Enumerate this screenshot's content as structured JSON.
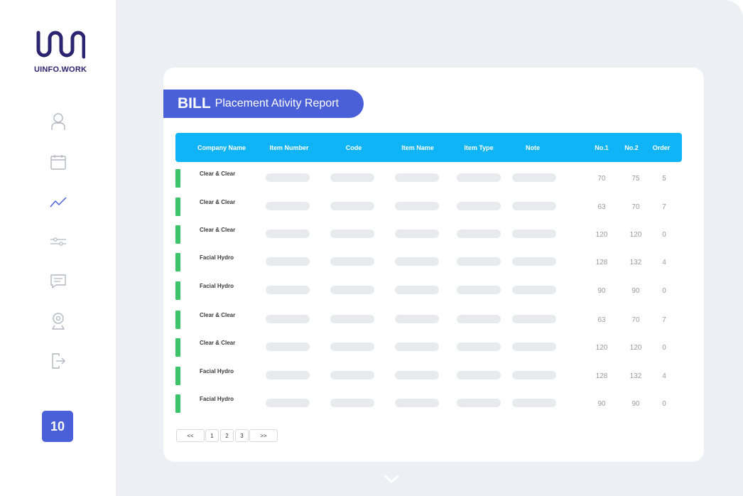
{
  "brand": {
    "name": "UINFO.WORK",
    "color": "#2c2470"
  },
  "sidebar": {
    "icons": [
      "user-icon",
      "calendar-icon",
      "chart-line-icon",
      "sliders-icon",
      "chat-icon",
      "location-pin-icon",
      "logout-icon"
    ],
    "active": "chart-line-icon",
    "badge": "10"
  },
  "report": {
    "title_strong": "BILL",
    "title_light": "Placement Ativity Report"
  },
  "table": {
    "columns": [
      "Company Name",
      "Item Number",
      "Code",
      "Item Name",
      "Item Type",
      "Note",
      "No.1",
      "No.2",
      "Order"
    ],
    "rows": [
      {
        "company": "Clear & Clear",
        "no1": "70",
        "no2": "75",
        "order": "5"
      },
      {
        "company": "Clear & Clear",
        "no1": "63",
        "no2": "70",
        "order": "7"
      },
      {
        "company": "Clear & Clear",
        "no1": "120",
        "no2": "120",
        "order": "0"
      },
      {
        "company": "Facial Hydro",
        "no1": "128",
        "no2": "132",
        "order": "4"
      },
      {
        "company": "Facial Hydro",
        "no1": "90",
        "no2": "90",
        "order": "0"
      },
      {
        "company": "Clear & Clear",
        "no1": "63",
        "no2": "70",
        "order": "7"
      },
      {
        "company": "Clear & Clear",
        "no1": "120",
        "no2": "120",
        "order": "0"
      },
      {
        "company": "Facial Hydro",
        "no1": "128",
        "no2": "132",
        "order": "4"
      },
      {
        "company": "Facial Hydro",
        "no1": "90",
        "no2": "90",
        "order": "0"
      }
    ]
  },
  "pagination": {
    "first": "<<",
    "pages": [
      "1",
      "2",
      "3"
    ],
    "next": ">>"
  },
  "colors": {
    "accent": "#4a60d8",
    "header": "#0fb4f6",
    "row_marker": "#3dc46a",
    "background": "#eeeff4"
  }
}
